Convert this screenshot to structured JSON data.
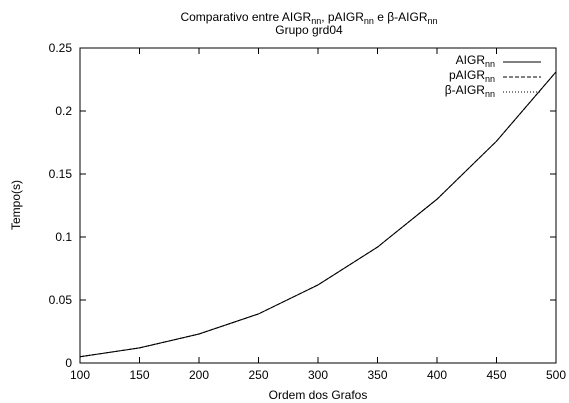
{
  "chart_data": {
    "type": "line",
    "title": {
      "line1_parts": [
        "Comparativo entre AIGR",
        "nn",
        ", pAIGR",
        "nn",
        " e β-AIGR",
        "nn"
      ],
      "line2": "Grupo grd04"
    },
    "xlabel": "Ordem dos Grafos",
    "ylabel": "Tempo(s)",
    "xlim": [
      100,
      500
    ],
    "ylim": [
      0,
      0.25
    ],
    "x_ticks": [
      "100",
      "150",
      "200",
      "250",
      "300",
      "350",
      "400",
      "450",
      "500"
    ],
    "y_ticks": [
      "0",
      "0.05",
      "0.1",
      "0.15",
      "0.2",
      "0.25"
    ],
    "grid": false,
    "legend_position": "top-right",
    "x": [
      100,
      150,
      200,
      250,
      300,
      350,
      400,
      450,
      500
    ],
    "series": [
      {
        "name_base": "AIGR",
        "name_sub": "nn",
        "dash": "solid",
        "values": [
          0.005,
          0.012,
          0.023,
          0.039,
          0.062,
          0.092,
          0.13,
          0.176,
          0.231
        ]
      },
      {
        "name_base": "pAIGR",
        "name_sub": "nn",
        "dash": "dashed",
        "values": [
          0.005,
          0.012,
          0.023,
          0.039,
          0.062,
          0.092,
          0.13,
          0.176,
          0.231
        ]
      },
      {
        "name_base": "β-AIGR",
        "name_sub": "nn",
        "dash": "dotted",
        "values": [
          0.005,
          0.012,
          0.023,
          0.039,
          0.062,
          0.092,
          0.13,
          0.176,
          0.231
        ]
      }
    ]
  }
}
